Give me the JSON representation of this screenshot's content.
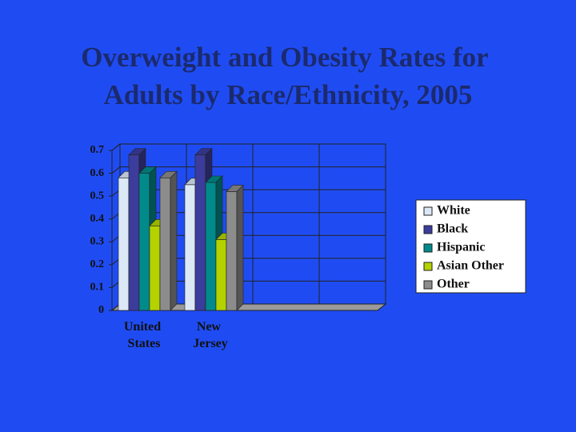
{
  "chart_data": {
    "type": "bar3d",
    "title": "Overweight and Obesity Rates for Adults by Race/Ethnicity, 2005",
    "categories": [
      "United States",
      "New Jersey",
      null,
      null
    ],
    "series": [
      {
        "name": "White",
        "color": "#dce8f6",
        "values": [
          0.58,
          0.55,
          null,
          null
        ]
      },
      {
        "name": "Black",
        "color": "#3c3c9c",
        "values": [
          0.68,
          0.68,
          null,
          null
        ]
      },
      {
        "name": "Hispanic",
        "color": "#008a8a",
        "values": [
          0.6,
          0.56,
          null,
          null
        ]
      },
      {
        "name": "Asian Other",
        "color": "#b4d200",
        "values": [
          0.37,
          0.31,
          null,
          null
        ]
      },
      {
        "name": "Other",
        "color": "#8c8c8c",
        "values": [
          0.58,
          0.52,
          null,
          null
        ]
      }
    ],
    "ylim": [
      0,
      0.7
    ],
    "yticks": [
      0,
      0.1,
      0.2,
      0.3,
      0.4,
      0.5,
      0.6,
      0.7
    ],
    "grid": true,
    "legend": "right"
  }
}
